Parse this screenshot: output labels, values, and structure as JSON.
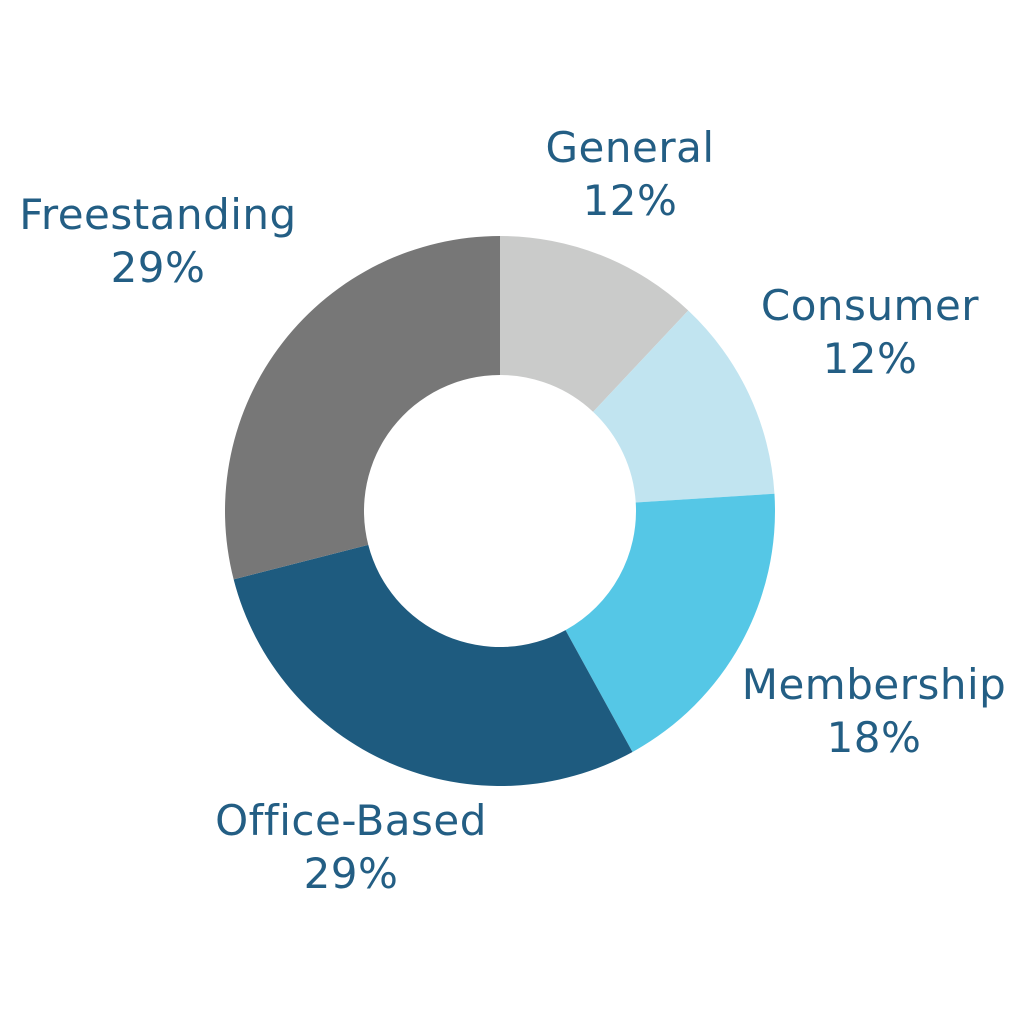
{
  "chart_data": {
    "type": "pie",
    "subtype": "donut",
    "title": "",
    "direction": "clockwise",
    "start_angle_deg": 0,
    "total": 100,
    "legend_position": "labels-outside-ring",
    "label_color": "#235e84",
    "background_color": "#ffffff",
    "segments": [
      {
        "label": "General",
        "value": 12,
        "display": "12%",
        "color": "#cacbca"
      },
      {
        "label": "Consumer",
        "value": 12,
        "display": "12%",
        "color": "#c1e4f0"
      },
      {
        "label": "Membership",
        "value": 18,
        "display": "18%",
        "color": "#55c7e6"
      },
      {
        "label": "Office-Based",
        "value": 29,
        "display": "29%",
        "color": "#1e5b7f"
      },
      {
        "label": "Freestanding",
        "value": 29,
        "display": "29%",
        "color": "#777777"
      }
    ]
  }
}
